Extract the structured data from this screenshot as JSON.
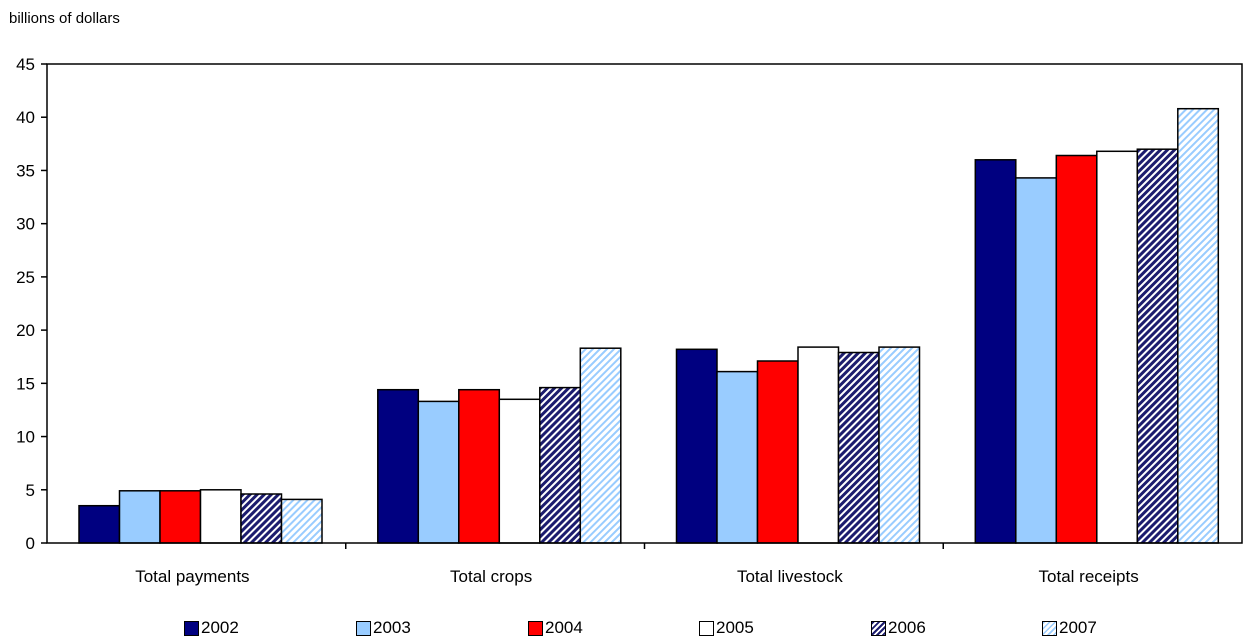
{
  "chart_data": {
    "type": "bar",
    "ylabel": "billions of dollars",
    "categories": [
      "Total payments",
      "Total crops",
      "Total livestock",
      "Total receipts"
    ],
    "ylim": [
      0,
      45
    ],
    "yticks": [
      0,
      5,
      10,
      15,
      20,
      25,
      30,
      35,
      40,
      45
    ],
    "grid": false,
    "legend_position": "bottom",
    "series": [
      {
        "name": "2002",
        "values": [
          3.5,
          14.4,
          18.2,
          36.0
        ],
        "color": "#000080",
        "pattern": "solid"
      },
      {
        "name": "2003",
        "values": [
          4.9,
          13.3,
          16.1,
          34.3
        ],
        "color": "#99ccff",
        "pattern": "solid"
      },
      {
        "name": "2004",
        "values": [
          4.9,
          14.4,
          17.1,
          36.4
        ],
        "color": "#ff0000",
        "pattern": "solid"
      },
      {
        "name": "2005",
        "values": [
          5.0,
          13.5,
          18.4,
          36.8
        ],
        "color": "#ffffff",
        "pattern": "solid"
      },
      {
        "name": "2006",
        "values": [
          4.6,
          14.6,
          17.9,
          37.0
        ],
        "color": "#1c1c6e",
        "pattern": "hatch-dark"
      },
      {
        "name": "2007",
        "values": [
          4.1,
          18.3,
          18.4,
          40.8
        ],
        "color": "#99ccff",
        "pattern": "hatch-light"
      }
    ]
  }
}
